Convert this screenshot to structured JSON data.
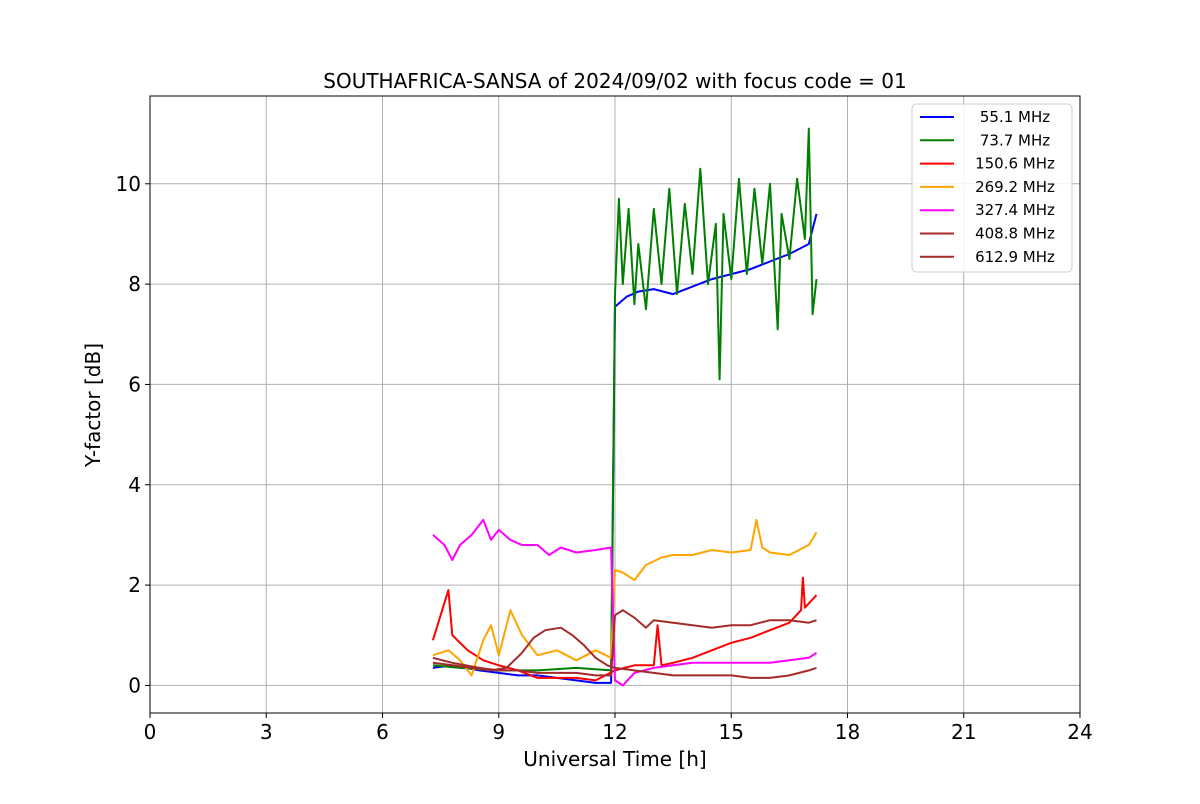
{
  "chart_data": {
    "type": "line",
    "title": "SOUTHAFRICA-SANSA of 2024/09/02 with focus code = 01",
    "xlabel": "Universal Time [h]",
    "ylabel": "Y-factor [dB]",
    "xlim": [
      0,
      24
    ],
    "ylim": [
      -0.55,
      11.75
    ],
    "xticks": [
      0,
      3,
      6,
      9,
      12,
      15,
      18,
      21,
      24
    ],
    "yticks": [
      0,
      2,
      4,
      6,
      8,
      10
    ],
    "grid": true,
    "legend_position": "top-right",
    "series": [
      {
        "name": "55.1 MHz",
        "color": "#0000ff",
        "points": [
          [
            7.3,
            0.35
          ],
          [
            7.8,
            0.4
          ],
          [
            8.5,
            0.3
          ],
          [
            9.0,
            0.25
          ],
          [
            9.5,
            0.2
          ],
          [
            10.0,
            0.2
          ],
          [
            10.5,
            0.15
          ],
          [
            11.0,
            0.1
          ],
          [
            11.5,
            0.05
          ],
          [
            11.9,
            0.05
          ],
          [
            12.0,
            7.55
          ],
          [
            12.3,
            7.75
          ],
          [
            12.6,
            7.85
          ],
          [
            13.0,
            7.9
          ],
          [
            13.5,
            7.8
          ],
          [
            14.0,
            7.95
          ],
          [
            14.5,
            8.1
          ],
          [
            15.0,
            8.2
          ],
          [
            15.5,
            8.3
          ],
          [
            16.0,
            8.45
          ],
          [
            16.5,
            8.6
          ],
          [
            17.0,
            8.8
          ],
          [
            17.2,
            9.4
          ]
        ]
      },
      {
        "name": "73.7 MHz",
        "color": "#008000",
        "points": [
          [
            7.3,
            0.4
          ],
          [
            8.0,
            0.35
          ],
          [
            9.0,
            0.3
          ],
          [
            10.0,
            0.3
          ],
          [
            11.0,
            0.35
          ],
          [
            11.9,
            0.3
          ],
          [
            12.0,
            7.8
          ],
          [
            12.1,
            9.7
          ],
          [
            12.2,
            8.0
          ],
          [
            12.35,
            9.5
          ],
          [
            12.5,
            7.6
          ],
          [
            12.6,
            8.8
          ],
          [
            12.8,
            7.5
          ],
          [
            13.0,
            9.5
          ],
          [
            13.2,
            8.0
          ],
          [
            13.4,
            9.9
          ],
          [
            13.6,
            7.8
          ],
          [
            13.8,
            9.6
          ],
          [
            14.0,
            8.2
          ],
          [
            14.2,
            10.3
          ],
          [
            14.4,
            8.0
          ],
          [
            14.6,
            9.2
          ],
          [
            14.7,
            6.1
          ],
          [
            14.8,
            9.4
          ],
          [
            15.0,
            8.1
          ],
          [
            15.2,
            10.1
          ],
          [
            15.4,
            8.2
          ],
          [
            15.6,
            9.9
          ],
          [
            15.8,
            8.4
          ],
          [
            16.0,
            10.0
          ],
          [
            16.2,
            7.1
          ],
          [
            16.3,
            9.4
          ],
          [
            16.5,
            8.5
          ],
          [
            16.7,
            10.1
          ],
          [
            16.9,
            8.9
          ],
          [
            17.0,
            11.1
          ],
          [
            17.1,
            7.4
          ],
          [
            17.2,
            8.1
          ]
        ]
      },
      {
        "name": "150.6 MHz",
        "color": "#ff0000",
        "points": [
          [
            7.3,
            0.9
          ],
          [
            7.7,
            1.9
          ],
          [
            7.8,
            1.0
          ],
          [
            8.2,
            0.7
          ],
          [
            8.6,
            0.5
          ],
          [
            9.0,
            0.4
          ],
          [
            9.5,
            0.3
          ],
          [
            10.0,
            0.15
          ],
          [
            10.5,
            0.15
          ],
          [
            11.0,
            0.15
          ],
          [
            11.5,
            0.1
          ],
          [
            12.0,
            0.3
          ],
          [
            12.5,
            0.4
          ],
          [
            13.0,
            0.4
          ],
          [
            13.1,
            1.2
          ],
          [
            13.2,
            0.4
          ],
          [
            13.5,
            0.45
          ],
          [
            14.0,
            0.55
          ],
          [
            14.5,
            0.7
          ],
          [
            15.0,
            0.85
          ],
          [
            15.5,
            0.95
          ],
          [
            16.0,
            1.1
          ],
          [
            16.5,
            1.25
          ],
          [
            16.8,
            1.5
          ],
          [
            16.85,
            2.15
          ],
          [
            16.9,
            1.55
          ],
          [
            17.2,
            1.8
          ]
        ]
      },
      {
        "name": "269.2 MHz",
        "color": "#ffa500",
        "points": [
          [
            7.3,
            0.6
          ],
          [
            7.7,
            0.7
          ],
          [
            8.0,
            0.5
          ],
          [
            8.3,
            0.2
          ],
          [
            8.6,
            0.9
          ],
          [
            8.8,
            1.2
          ],
          [
            9.0,
            0.6
          ],
          [
            9.3,
            1.5
          ],
          [
            9.6,
            1.0
          ],
          [
            10.0,
            0.6
          ],
          [
            10.5,
            0.7
          ],
          [
            11.0,
            0.5
          ],
          [
            11.5,
            0.7
          ],
          [
            11.9,
            0.55
          ],
          [
            12.0,
            2.3
          ],
          [
            12.2,
            2.25
          ],
          [
            12.5,
            2.1
          ],
          [
            12.8,
            2.4
          ],
          [
            13.2,
            2.55
          ],
          [
            13.5,
            2.6
          ],
          [
            14.0,
            2.6
          ],
          [
            14.5,
            2.7
          ],
          [
            15.0,
            2.65
          ],
          [
            15.5,
            2.7
          ],
          [
            15.65,
            3.3
          ],
          [
            15.8,
            2.75
          ],
          [
            16.0,
            2.65
          ],
          [
            16.5,
            2.6
          ],
          [
            17.0,
            2.8
          ],
          [
            17.2,
            3.05
          ]
        ]
      },
      {
        "name": "327.4 MHz",
        "color": "#ff00ff",
        "points": [
          [
            7.3,
            3.0
          ],
          [
            7.6,
            2.8
          ],
          [
            7.8,
            2.5
          ],
          [
            8.0,
            2.8
          ],
          [
            8.3,
            3.0
          ],
          [
            8.6,
            3.3
          ],
          [
            8.8,
            2.9
          ],
          [
            9.0,
            3.1
          ],
          [
            9.3,
            2.9
          ],
          [
            9.6,
            2.8
          ],
          [
            10.0,
            2.8
          ],
          [
            10.3,
            2.6
          ],
          [
            10.6,
            2.75
          ],
          [
            11.0,
            2.65
          ],
          [
            11.5,
            2.7
          ],
          [
            11.9,
            2.75
          ],
          [
            12.0,
            0.1
          ],
          [
            12.2,
            0.0
          ],
          [
            12.5,
            0.25
          ],
          [
            13.0,
            0.35
          ],
          [
            13.5,
            0.4
          ],
          [
            14.0,
            0.45
          ],
          [
            14.5,
            0.45
          ],
          [
            15.0,
            0.45
          ],
          [
            15.5,
            0.45
          ],
          [
            16.0,
            0.45
          ],
          [
            16.5,
            0.5
          ],
          [
            17.0,
            0.55
          ],
          [
            17.2,
            0.65
          ]
        ]
      },
      {
        "name": "408.8 MHz",
        "color": "#a52a2a",
        "points": [
          [
            7.3,
            0.45
          ],
          [
            7.8,
            0.4
          ],
          [
            8.3,
            0.35
          ],
          [
            8.8,
            0.3
          ],
          [
            9.2,
            0.35
          ],
          [
            9.6,
            0.65
          ],
          [
            9.9,
            0.95
          ],
          [
            10.2,
            1.1
          ],
          [
            10.6,
            1.15
          ],
          [
            10.9,
            1.0
          ],
          [
            11.2,
            0.8
          ],
          [
            11.5,
            0.55
          ],
          [
            11.8,
            0.4
          ],
          [
            12.0,
            0.35
          ],
          [
            12.5,
            0.3
          ],
          [
            13.0,
            0.25
          ],
          [
            13.5,
            0.2
          ],
          [
            14.0,
            0.2
          ],
          [
            14.5,
            0.2
          ],
          [
            15.0,
            0.2
          ],
          [
            15.5,
            0.15
          ],
          [
            16.0,
            0.15
          ],
          [
            16.5,
            0.2
          ],
          [
            17.0,
            0.3
          ],
          [
            17.2,
            0.35
          ]
        ]
      },
      {
        "name": "612.9 MHz",
        "color": "#a52a2a",
        "points": [
          [
            7.3,
            0.55
          ],
          [
            7.8,
            0.45
          ],
          [
            8.5,
            0.35
          ],
          [
            9.0,
            0.3
          ],
          [
            9.5,
            0.3
          ],
          [
            10.0,
            0.25
          ],
          [
            10.5,
            0.25
          ],
          [
            11.0,
            0.25
          ],
          [
            11.5,
            0.2
          ],
          [
            11.9,
            0.2
          ],
          [
            12.0,
            1.4
          ],
          [
            12.2,
            1.5
          ],
          [
            12.5,
            1.35
          ],
          [
            12.8,
            1.15
          ],
          [
            13.0,
            1.3
          ],
          [
            13.5,
            1.25
          ],
          [
            14.0,
            1.2
          ],
          [
            14.5,
            1.15
          ],
          [
            15.0,
            1.2
          ],
          [
            15.5,
            1.2
          ],
          [
            16.0,
            1.3
          ],
          [
            16.5,
            1.3
          ],
          [
            17.0,
            1.25
          ],
          [
            17.2,
            1.3
          ]
        ]
      }
    ]
  }
}
